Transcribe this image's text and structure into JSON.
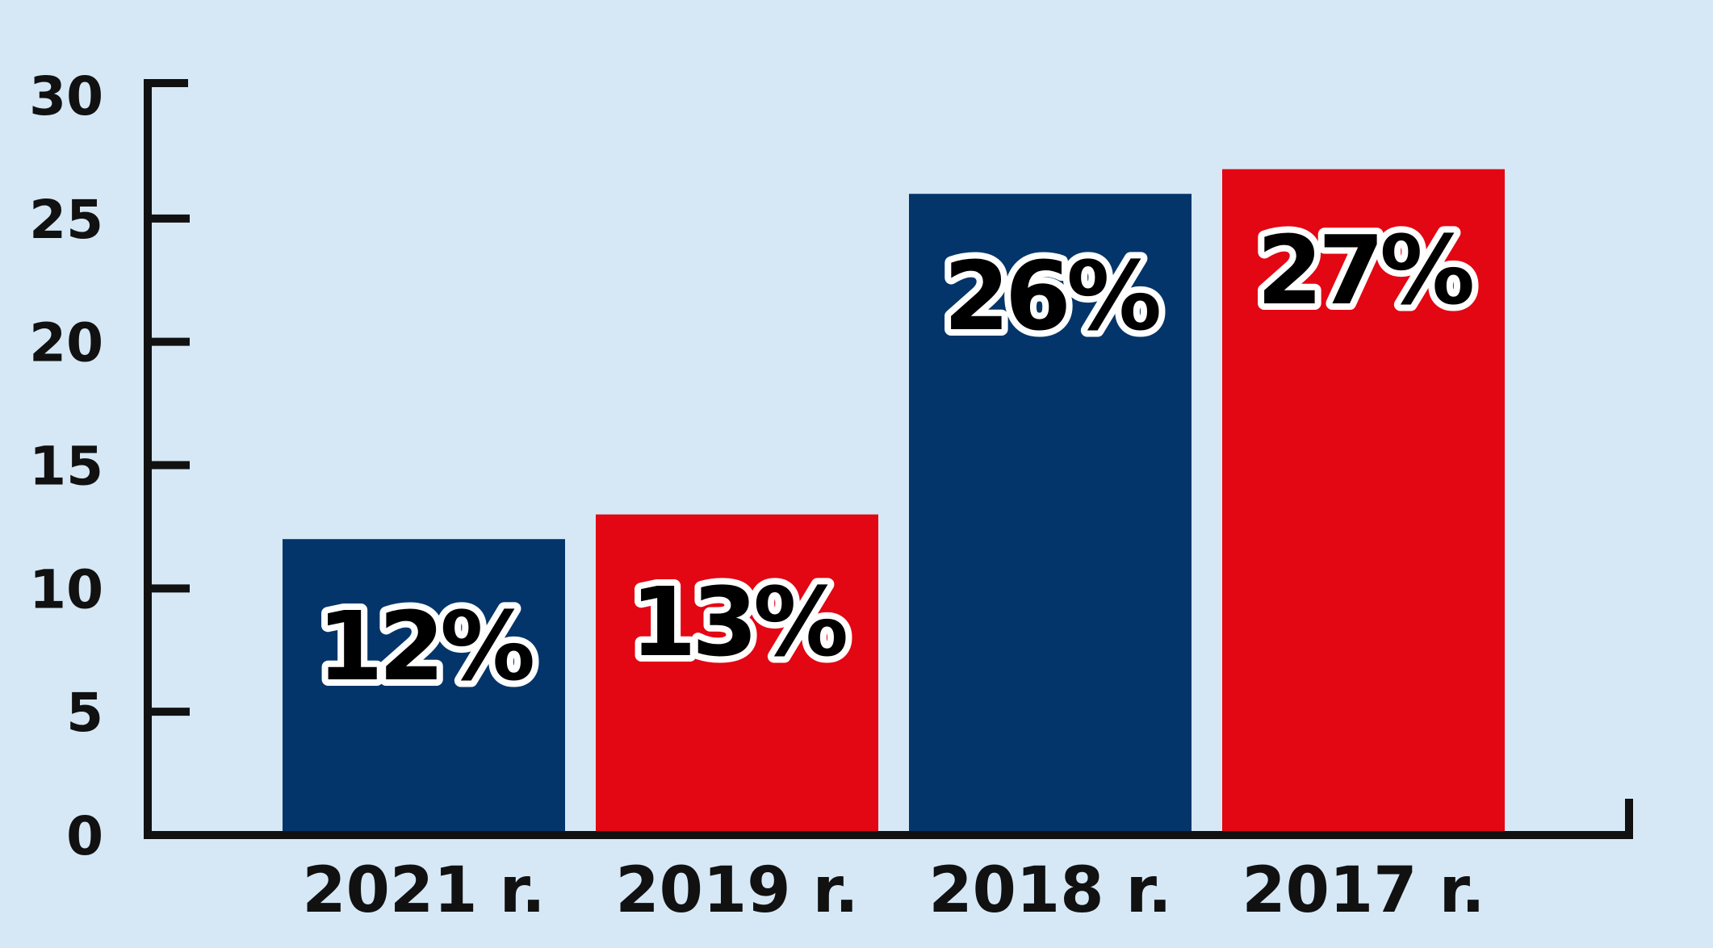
{
  "chart_data": {
    "type": "bar",
    "categories": [
      "2021 r.",
      "2019 r.",
      "2018 r.",
      "2017 r."
    ],
    "values": [
      12,
      13,
      26,
      27
    ],
    "data_labels": [
      "12%",
      "13%",
      "26%",
      "27%"
    ],
    "bar_colors": [
      "#03356a",
      "#e30613",
      "#03356a",
      "#e30613"
    ],
    "title": "",
    "xlabel": "",
    "ylabel": "",
    "ylim": [
      0,
      30
    ],
    "yticks": [
      0,
      5,
      10,
      15,
      20,
      25,
      30
    ],
    "grid": false,
    "legend": "none"
  },
  "colors": {
    "background": "#d6e8f5",
    "axis": "#111111",
    "label_outline": "#ffffff"
  }
}
